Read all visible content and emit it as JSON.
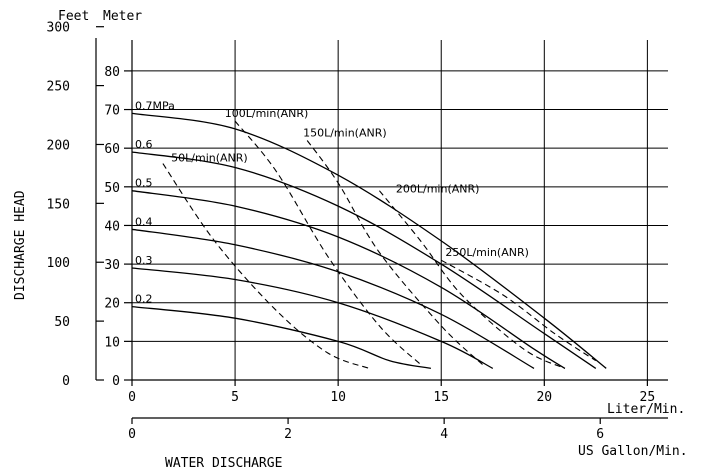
{
  "chart_data": {
    "type": "line",
    "title": "",
    "y_units": {
      "feet": "Feet",
      "meter": "Meter"
    },
    "ylabel": "DISCHARGE HEAD",
    "xlabel": "WATER DISCHARGE",
    "x_primary": {
      "unit": "Liter/Min.",
      "ticks": [
        "0",
        "5",
        "10",
        "15",
        "20",
        "25"
      ],
      "range": [
        0,
        26
      ]
    },
    "x_secondary": {
      "unit": "US Gallon/Min.",
      "ticks": [
        "0",
        "2",
        "4",
        "6"
      ]
    },
    "y_meter": {
      "ticks": [
        "0",
        "10",
        "20",
        "30",
        "40",
        "50",
        "60",
        "70",
        "80"
      ],
      "range": [
        0,
        88
      ]
    },
    "y_feet": {
      "ticks": [
        "0",
        "50",
        "100",
        "150",
        "200",
        "250",
        "300"
      ]
    },
    "grid": true,
    "pressure_series": [
      {
        "name": "0.7MPa",
        "points": [
          [
            0,
            69
          ],
          [
            5,
            65
          ],
          [
            10,
            53
          ],
          [
            15,
            36
          ],
          [
            20,
            16
          ],
          [
            23,
            3
          ]
        ]
      },
      {
        "name": "0.6",
        "points": [
          [
            0,
            59
          ],
          [
            5,
            55
          ],
          [
            10,
            45
          ],
          [
            15,
            30
          ],
          [
            20,
            12
          ],
          [
            22.5,
            3
          ]
        ]
      },
      {
        "name": "0.5",
        "points": [
          [
            0,
            49
          ],
          [
            5,
            45
          ],
          [
            10,
            37
          ],
          [
            15,
            24
          ],
          [
            19.5,
            8
          ],
          [
            21,
            3
          ]
        ]
      },
      {
        "name": "0.4",
        "points": [
          [
            0,
            39
          ],
          [
            5,
            35
          ],
          [
            10,
            28
          ],
          [
            15,
            17
          ],
          [
            19.5,
            3
          ]
        ]
      },
      {
        "name": "0.3",
        "points": [
          [
            0,
            29
          ],
          [
            5,
            26
          ],
          [
            10,
            20
          ],
          [
            15,
            10
          ],
          [
            17.5,
            3
          ]
        ]
      },
      {
        "name": "0.2",
        "points": [
          [
            0,
            19
          ],
          [
            5,
            16
          ],
          [
            10,
            10
          ],
          [
            12.5,
            5
          ],
          [
            14.5,
            3
          ]
        ]
      }
    ],
    "air_series": [
      {
        "name": "50L/min(ANR)",
        "points": [
          [
            1.5,
            56
          ],
          [
            4,
            36
          ],
          [
            7,
            18
          ],
          [
            9.5,
            7
          ],
          [
            11.5,
            3
          ]
        ]
      },
      {
        "name": "100L/min(ANR)",
        "points": [
          [
            5,
            67
          ],
          [
            7,
            54
          ],
          [
            9.5,
            32
          ],
          [
            12,
            14
          ],
          [
            14,
            4
          ]
        ]
      },
      {
        "name": "150L/min(ANR)",
        "points": [
          [
            8.5,
            62
          ],
          [
            10,
            51
          ],
          [
            12,
            33
          ],
          [
            15,
            14
          ],
          [
            17,
            4
          ]
        ]
      },
      {
        "name": "200L/min(ANR)",
        "points": [
          [
            12,
            49
          ],
          [
            14,
            36
          ],
          [
            16,
            22
          ],
          [
            19,
            8
          ],
          [
            21,
            3
          ]
        ]
      },
      {
        "name": "250L/min(ANR)",
        "points": [
          [
            15,
            31
          ],
          [
            18,
            22
          ],
          [
            20.5,
            12
          ],
          [
            22.5,
            5
          ]
        ]
      }
    ],
    "labels": {
      "pressure": [
        "0.7MPa",
        "0.6",
        "0.5",
        "0.4",
        "0.3",
        "0.2"
      ],
      "air": [
        "50L/min(ANR)",
        "100L/min(ANR)",
        "150L/min(ANR)",
        "200L/min(ANR)",
        "250L/min(ANR)"
      ]
    }
  }
}
